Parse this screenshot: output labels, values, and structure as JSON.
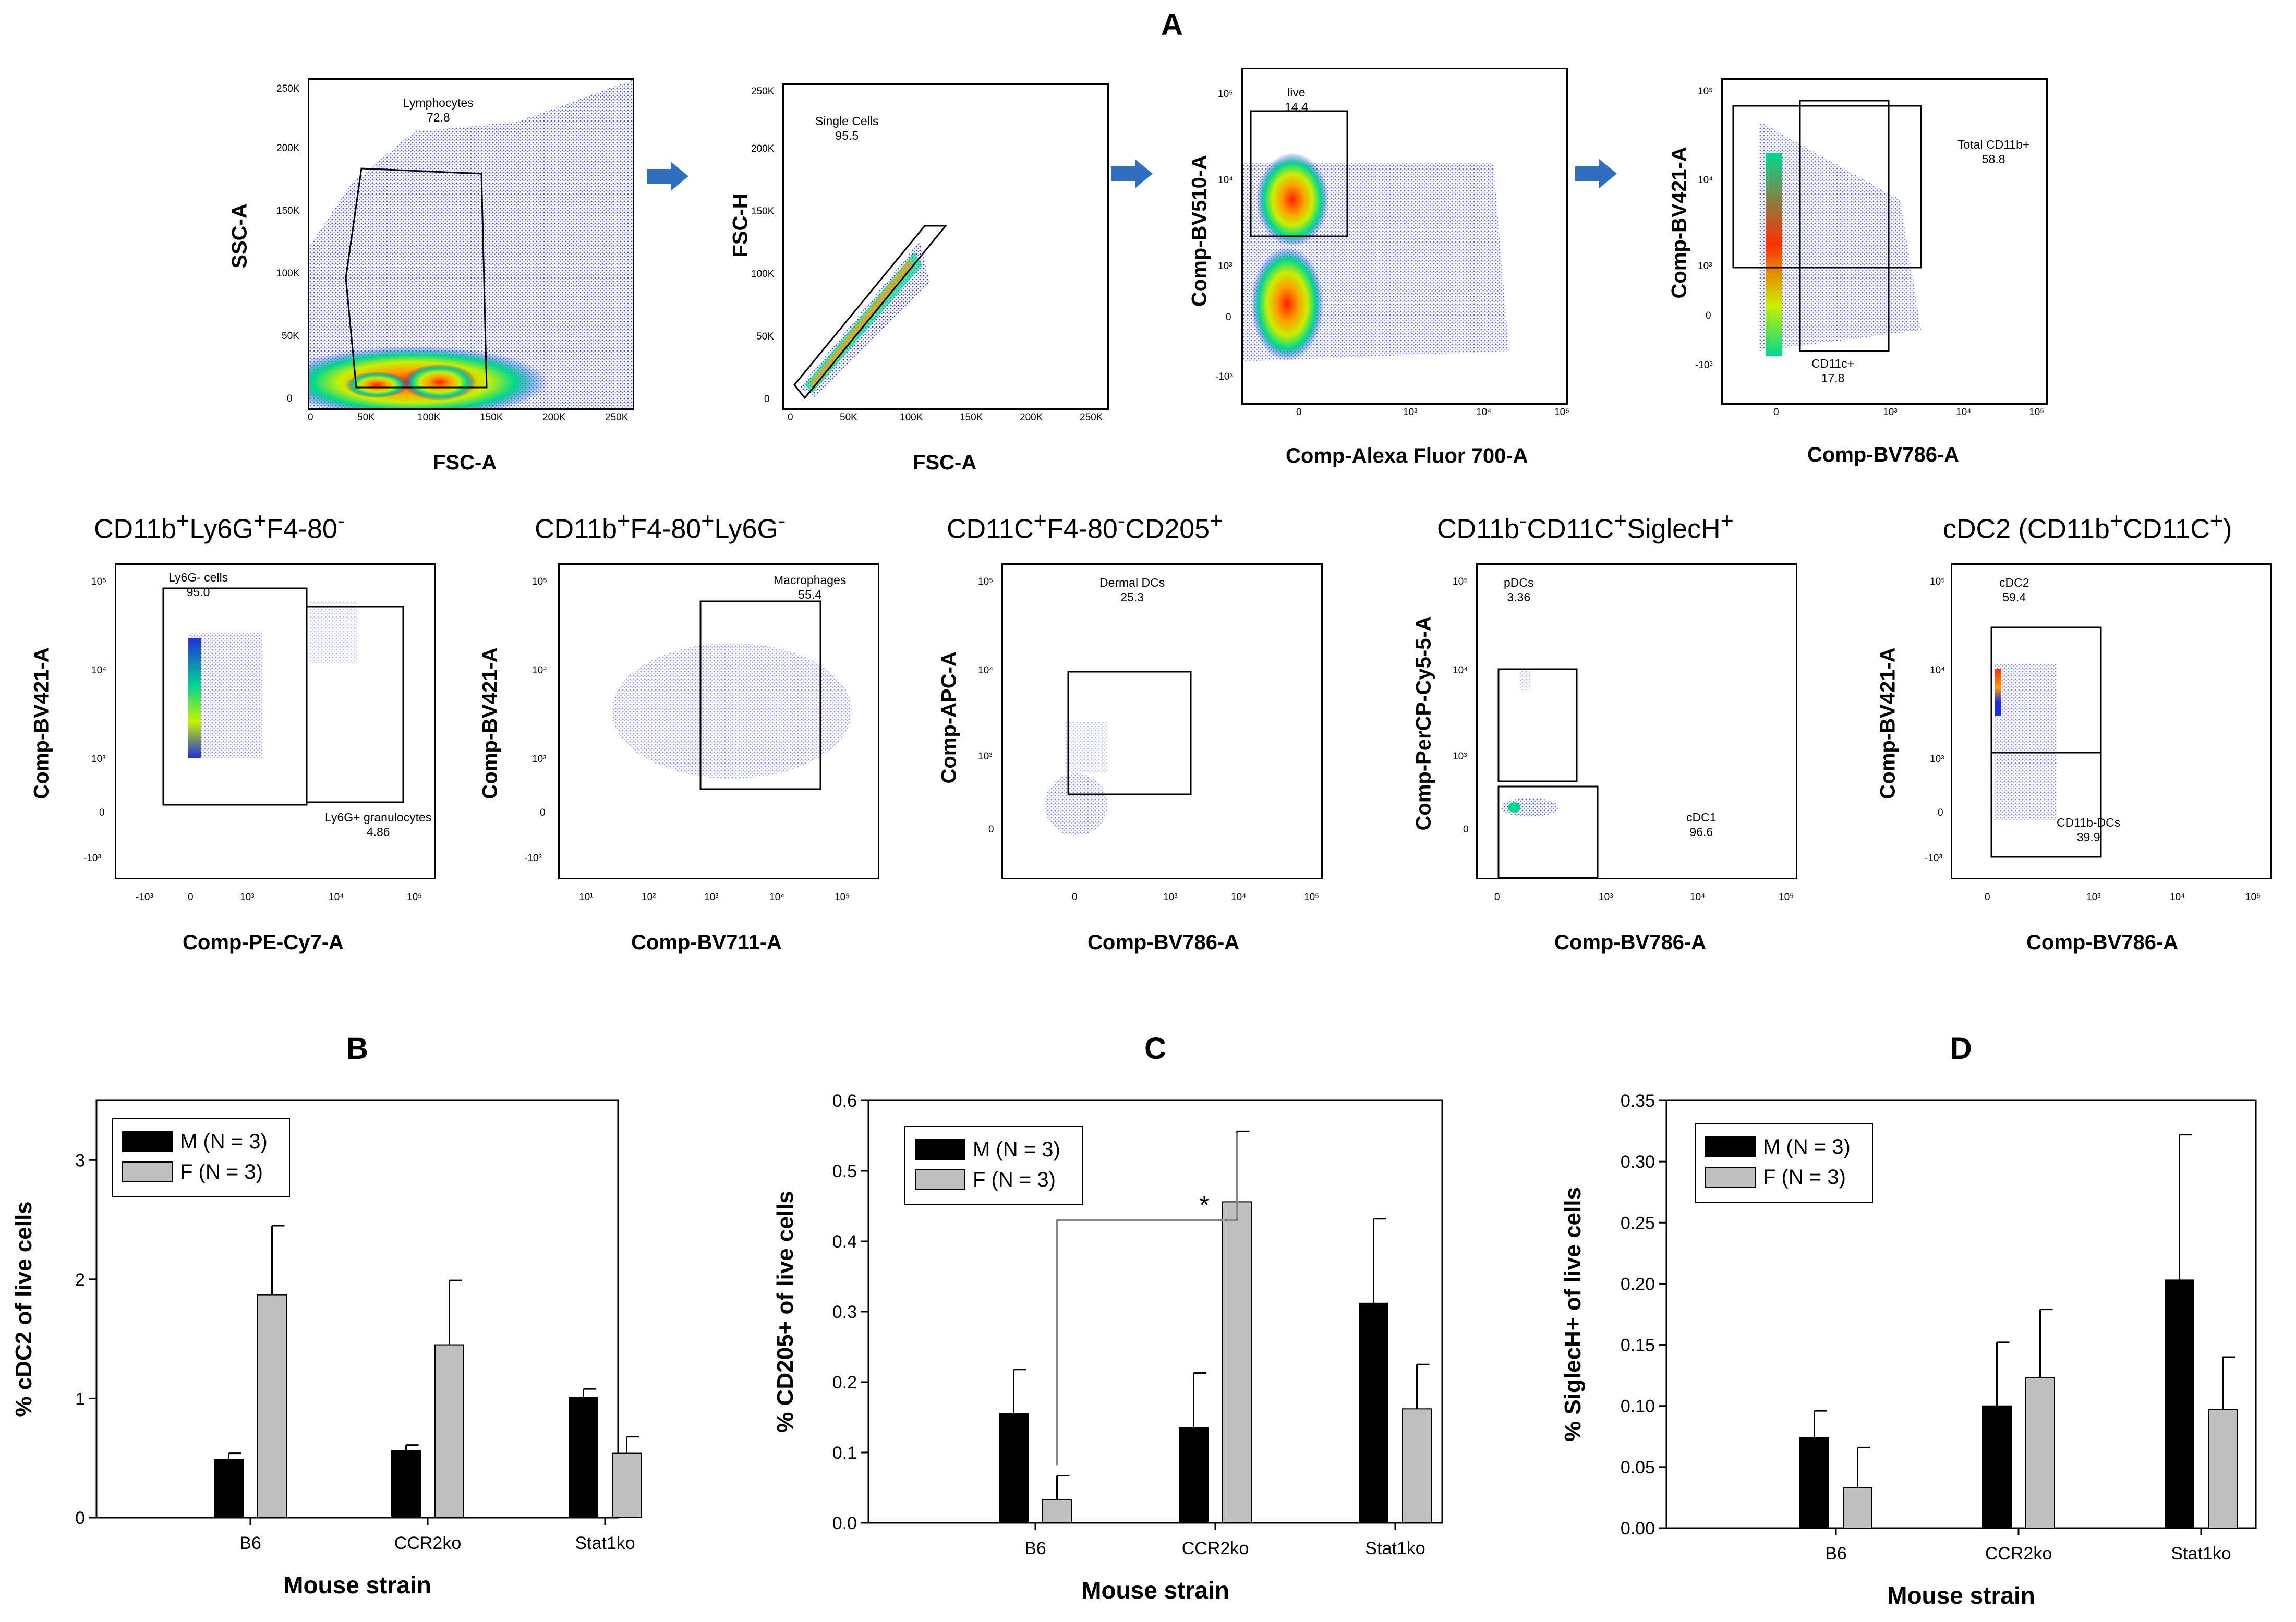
{
  "figure_label": "A",
  "colors": {
    "dot_blue": "#1f2fe0",
    "bar_male": "#000000",
    "bar_female": "#c0c0c0",
    "arrow": "#2f6fbf"
  },
  "gating": {
    "plot1": {
      "xlabel": "FSC-A",
      "ylabel": "SSC-A",
      "gate_name": "Lymphocytes",
      "gate_value": "72.8",
      "xticks": [
        "0",
        "50K",
        "100K",
        "150K",
        "200K",
        "250K"
      ],
      "yticks": [
        "0",
        "50K",
        "100K",
        "150K",
        "200K",
        "250K"
      ]
    },
    "plot2": {
      "xlabel": "FSC-A",
      "ylabel": "FSC-H",
      "gate_name": "Single Cells",
      "gate_value": "95.5",
      "xticks": [
        "0",
        "50K",
        "100K",
        "150K",
        "200K",
        "250K"
      ],
      "yticks": [
        "0",
        "50K",
        "100K",
        "150K",
        "200K",
        "250K"
      ]
    },
    "plot3": {
      "xlabel": "Comp-Alexa Fluor 700-A",
      "ylabel": "Comp-BV510-A",
      "gate_name": "live",
      "gate_value": "14.4",
      "xticks": [
        "0",
        "10³",
        "10⁴",
        "10⁵"
      ],
      "yticks": [
        "-10³",
        "0",
        "10³",
        "10⁴",
        "10⁵"
      ]
    },
    "plot4": {
      "xlabel": "Comp-BV786-A",
      "ylabel": "Comp-BV421-A",
      "gate_name": "Total CD11b+",
      "gate_value": "58.8",
      "gate2_name": "CD11c+",
      "gate2_value": "17.8",
      "xticks": [
        "0",
        "10³",
        "10⁴",
        "10⁵"
      ],
      "yticks": [
        "-10³",
        "0",
        "10³",
        "10⁴",
        "10⁵"
      ]
    }
  },
  "populations": {
    "p1": {
      "title_parts": [
        "CD11b",
        "+",
        "Ly6G",
        "+",
        "F4-80",
        "-"
      ],
      "xlabel": "Comp-PE-Cy7-A",
      "ylabel": "Comp-BV421-A",
      "gate_name": "Ly6G- cells",
      "gate_value": "95.0",
      "gate2_name": "Ly6G+ granulocytes",
      "gate2_value": "4.86",
      "xticks": [
        "-10³",
        "0",
        "10³",
        "10⁴",
        "10⁵"
      ],
      "yticks": [
        "-10³",
        "0",
        "10³",
        "10⁴",
        "10⁵"
      ]
    },
    "p2": {
      "title_parts": [
        "CD11b",
        "+",
        "F4-80",
        "+",
        "Ly6G",
        "-"
      ],
      "xlabel": "Comp-BV711-A",
      "ylabel": "Comp-BV421-A",
      "gate_name": "Macrophages",
      "gate_value": "55.4",
      "xticks": [
        "10¹",
        "10²",
        "10³",
        "10⁴",
        "10⁵"
      ],
      "yticks": [
        "-10³",
        "0",
        "10³",
        "10⁴",
        "10⁵"
      ]
    },
    "p3": {
      "title_parts": [
        "CD11C",
        "+",
        "F4-80",
        "-",
        "CD205",
        "+"
      ],
      "xlabel": "Comp-BV786-A",
      "ylabel": "Comp-APC-A",
      "gate_name": "Dermal DCs",
      "gate_value": "25.3",
      "xticks": [
        "0",
        "10³",
        "10⁴",
        "10⁵"
      ],
      "yticks": [
        "0",
        "10³",
        "10⁴",
        "10⁵"
      ]
    },
    "p4": {
      "title_parts": [
        "CD11b",
        "-",
        "CD11C",
        "+",
        "SiglecH",
        "+"
      ],
      "xlabel": "Comp-BV786-A",
      "ylabel": "Comp-PerCP-Cy5-5-A",
      "gate_name": "pDCs",
      "gate_value": "3.36",
      "gate2_name": "cDC1",
      "gate2_value": "96.6",
      "xticks": [
        "0",
        "10³",
        "10⁴",
        "10⁵"
      ],
      "yticks": [
        "0",
        "10³",
        "10⁴",
        "10⁵"
      ]
    },
    "p5": {
      "title_parts": [
        "cDC2 (CD11b",
        "+",
        "CD11C",
        "+",
        ")",
        ""
      ],
      "xlabel": "Comp-BV786-A",
      "ylabel": "Comp-BV421-A",
      "gate_name": "cDC2",
      "gate_value": "59.4",
      "gate2_name": "CD11b-DCs",
      "gate2_value": "39.9",
      "xticks": [
        "0",
        "10³",
        "10⁴",
        "10⁵"
      ],
      "yticks": [
        "-10³",
        "0",
        "10³",
        "10⁴",
        "10⁵"
      ]
    }
  },
  "chart_data": [
    {
      "panel": "B",
      "type": "bar",
      "categories": [
        "B6",
        "CCR2ko",
        "Stat1ko"
      ],
      "series": [
        {
          "name": "M (N = 3)",
          "values": [
            0.49,
            0.56,
            1.01
          ],
          "errors": [
            0.05,
            0.05,
            0.07
          ]
        },
        {
          "name": "F (N = 3)",
          "values": [
            1.87,
            1.45,
            0.54
          ],
          "errors": [
            0.58,
            0.54,
            0.14
          ]
        }
      ],
      "xlabel": "Mouse strain",
      "ylabel": "% cDC2 of live cells",
      "ylim": [
        0,
        3.5
      ],
      "yticks": [
        0,
        1,
        2,
        3
      ],
      "ytick_labels": [
        "0",
        "1",
        "2",
        "3"
      ],
      "legend": "top-left",
      "significance": null
    },
    {
      "panel": "C",
      "type": "bar",
      "categories": [
        "B6",
        "CCR2ko",
        "Stat1ko"
      ],
      "series": [
        {
          "name": "M (N = 3)",
          "values": [
            0.155,
            0.135,
            0.312
          ],
          "errors": [
            0.063,
            0.078,
            0.12
          ]
        },
        {
          "name": "F (N = 3)",
          "values": [
            0.033,
            0.456,
            0.162
          ],
          "errors": [
            0.034,
            0.1,
            0.063
          ]
        }
      ],
      "xlabel": "Mouse strain",
      "ylabel": "% CD205+ of live cells",
      "ylim": [
        0,
        0.6
      ],
      "yticks": [
        0,
        0.1,
        0.2,
        0.3,
        0.4,
        0.5,
        0.6
      ],
      "ytick_labels": [
        "0.0",
        "0.1",
        "0.2",
        "0.3",
        "0.4",
        "0.5",
        "0.6"
      ],
      "legend": "top-left",
      "significance": {
        "label": "*",
        "from": "B6 F",
        "to": "CCR2ko F"
      }
    },
    {
      "panel": "D",
      "type": "bar",
      "categories": [
        "B6",
        "CCR2ko",
        "Stat1ko"
      ],
      "series": [
        {
          "name": "M (N = 3)",
          "values": [
            0.074,
            0.1,
            0.203
          ],
          "errors": [
            0.022,
            0.052,
            0.119
          ]
        },
        {
          "name": "F (N = 3)",
          "values": [
            0.033,
            0.123,
            0.097
          ],
          "errors": [
            0.033,
            0.056,
            0.043
          ]
        }
      ],
      "xlabel": "Mouse strain",
      "ylabel": "% SiglecH+ of live cells",
      "ylim": [
        0,
        0.35
      ],
      "yticks": [
        0,
        0.05,
        0.1,
        0.15,
        0.2,
        0.25,
        0.3,
        0.35
      ],
      "ytick_labels": [
        "0.00",
        "0.05",
        "0.10",
        "0.15",
        "0.20",
        "0.25",
        "0.30",
        "0.35"
      ],
      "legend": "top-left",
      "significance": null
    }
  ]
}
